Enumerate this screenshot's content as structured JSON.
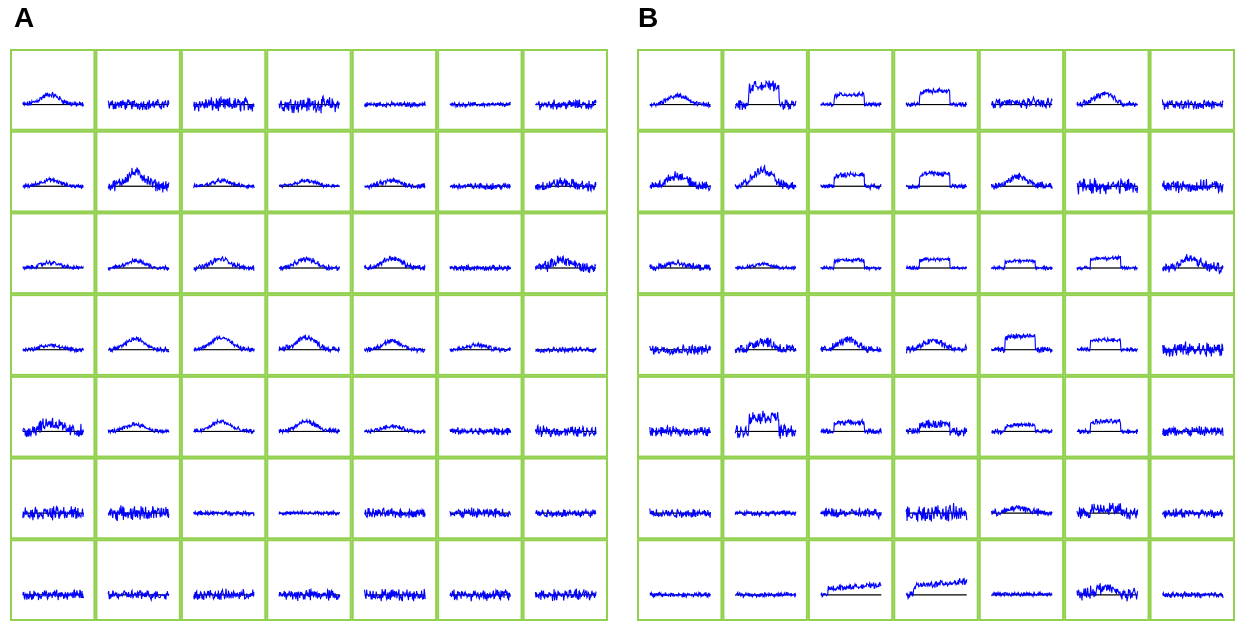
{
  "panels": [
    {
      "label": "A",
      "rows": 7,
      "cols": 7,
      "cells": [
        [
          {
            "shape": "bump",
            "amp": 0.55,
            "noise": 0.6
          },
          {
            "shape": "flat",
            "amp": 0,
            "noise": 1.1
          },
          {
            "shape": "flat",
            "amp": 0,
            "noise": 1.5
          },
          {
            "shape": "flat",
            "amp": 0,
            "noise": 1.6
          },
          {
            "shape": "flat",
            "amp": 0,
            "noise": 0.55
          },
          {
            "shape": "flat",
            "amp": 0,
            "noise": 0.45
          },
          {
            "shape": "flat",
            "amp": 0,
            "noise": 1.0
          }
        ],
        [
          {
            "shape": "bump",
            "amp": 0.35,
            "noise": 0.45
          },
          {
            "shape": "bump",
            "amp": 0.75,
            "noise": 1.2
          },
          {
            "shape": "bump",
            "amp": 0.3,
            "noise": 0.45
          },
          {
            "shape": "bump",
            "amp": 0.3,
            "noise": 0.4
          },
          {
            "shape": "bump",
            "amp": 0.3,
            "noise": 0.6
          },
          {
            "shape": "flat",
            "amp": 0,
            "noise": 0.7
          },
          {
            "shape": "bump",
            "amp": 0.2,
            "noise": 1.1
          }
        ],
        [
          {
            "shape": "bump",
            "amp": 0.3,
            "noise": 0.45
          },
          {
            "shape": "bump",
            "amp": 0.4,
            "noise": 0.45
          },
          {
            "shape": "bump",
            "amp": 0.5,
            "noise": 0.55
          },
          {
            "shape": "bump",
            "amp": 0.5,
            "noise": 0.55
          },
          {
            "shape": "bump",
            "amp": 0.55,
            "noise": 0.6
          },
          {
            "shape": "flat",
            "amp": 0,
            "noise": 0.6
          },
          {
            "shape": "bump",
            "amp": 0.45,
            "noise": 1.2
          }
        ],
        [
          {
            "shape": "bump",
            "amp": 0.25,
            "noise": 0.45
          },
          {
            "shape": "bump",
            "amp": 0.6,
            "noise": 0.5
          },
          {
            "shape": "bump",
            "amp": 0.7,
            "noise": 0.5
          },
          {
            "shape": "bump",
            "amp": 0.7,
            "noise": 0.6
          },
          {
            "shape": "bump",
            "amp": 0.45,
            "noise": 0.6
          },
          {
            "shape": "bump",
            "amp": 0.25,
            "noise": 0.5
          },
          {
            "shape": "flat",
            "amp": 0,
            "noise": 0.55
          }
        ],
        [
          {
            "shape": "bump",
            "amp": 0.5,
            "noise": 1.5
          },
          {
            "shape": "bump",
            "amp": 0.4,
            "noise": 0.45
          },
          {
            "shape": "bump",
            "amp": 0.55,
            "noise": 0.5
          },
          {
            "shape": "bump",
            "amp": 0.55,
            "noise": 0.5
          },
          {
            "shape": "bump",
            "amp": 0.3,
            "noise": 0.45
          },
          {
            "shape": "flat",
            "amp": 0,
            "noise": 0.8
          },
          {
            "shape": "flat",
            "amp": 0,
            "noise": 1.1
          }
        ],
        [
          {
            "shape": "flat",
            "amp": 0,
            "noise": 1.4
          },
          {
            "shape": "flat",
            "amp": 0,
            "noise": 1.5
          },
          {
            "shape": "flat",
            "amp": 0,
            "noise": 0.45
          },
          {
            "shape": "flat",
            "amp": 0,
            "noise": 0.45
          },
          {
            "shape": "flat",
            "amp": 0,
            "noise": 1.0
          },
          {
            "shape": "flat",
            "amp": 0,
            "noise": 1.1
          },
          {
            "shape": "flat",
            "amp": 0,
            "noise": 0.9
          }
        ],
        [
          {
            "shape": "flat",
            "amp": 0,
            "noise": 1.0
          },
          {
            "shape": "flat",
            "amp": 0,
            "noise": 1.0
          },
          {
            "shape": "flat",
            "amp": 0,
            "noise": 1.1
          },
          {
            "shape": "flat",
            "amp": 0,
            "noise": 1.2
          },
          {
            "shape": "flat",
            "amp": 0,
            "noise": 1.2
          },
          {
            "shape": "flat",
            "amp": 0,
            "noise": 1.2
          },
          {
            "shape": "flat",
            "amp": 0,
            "noise": 1.2
          }
        ]
      ]
    },
    {
      "label": "B",
      "rows": 7,
      "cols": 7,
      "cells": [
        [
          {
            "shape": "bump",
            "amp": 0.5,
            "noise": 0.6
          },
          {
            "shape": "step",
            "amp": 1.05,
            "noise": 1.0
          },
          {
            "shape": "step",
            "amp": 0.55,
            "noise": 0.45
          },
          {
            "shape": "step",
            "amp": 0.75,
            "noise": 0.5
          },
          {
            "shape": "flat",
            "amp": 0.3,
            "noise": 1.1
          },
          {
            "shape": "bump",
            "amp": 0.6,
            "noise": 0.7
          },
          {
            "shape": "flat",
            "amp": 0,
            "noise": 1.0
          }
        ],
        [
          {
            "shape": "bump",
            "amp": 0.6,
            "noise": 0.9
          },
          {
            "shape": "bump",
            "amp": 0.9,
            "noise": 0.9
          },
          {
            "shape": "step",
            "amp": 0.65,
            "noise": 0.55
          },
          {
            "shape": "step",
            "amp": 0.7,
            "noise": 0.55
          },
          {
            "shape": "bump",
            "amp": 0.55,
            "noise": 0.8
          },
          {
            "shape": "flat",
            "amp": 0,
            "noise": 1.6
          },
          {
            "shape": "flat",
            "amp": 0,
            "noise": 1.3
          }
        ],
        [
          {
            "shape": "bump",
            "amp": 0.3,
            "noise": 0.7
          },
          {
            "shape": "bump",
            "amp": 0.2,
            "noise": 0.35
          },
          {
            "shape": "step",
            "amp": 0.45,
            "noise": 0.4
          },
          {
            "shape": "step",
            "amp": 0.5,
            "noise": 0.4
          },
          {
            "shape": "step",
            "amp": 0.4,
            "noise": 0.35
          },
          {
            "shape": "step",
            "amp": 0.55,
            "noise": 0.4
          },
          {
            "shape": "bump",
            "amp": 0.5,
            "noise": 1.2
          }
        ],
        [
          {
            "shape": "flat",
            "amp": 0,
            "noise": 1.0
          },
          {
            "shape": "bump",
            "amp": 0.5,
            "noise": 1.2
          },
          {
            "shape": "bump",
            "amp": 0.55,
            "noise": 0.8
          },
          {
            "shape": "bump",
            "amp": 0.5,
            "noise": 0.8
          },
          {
            "shape": "step",
            "amp": 0.75,
            "noise": 0.6
          },
          {
            "shape": "step",
            "amp": 0.55,
            "noise": 0.4
          },
          {
            "shape": "flat",
            "amp": 0,
            "noise": 1.6
          }
        ],
        [
          {
            "shape": "flat",
            "amp": 0,
            "noise": 1.0
          },
          {
            "shape": "step",
            "amp": 0.8,
            "noise": 1.4
          },
          {
            "shape": "step",
            "amp": 0.5,
            "noise": 0.6
          },
          {
            "shape": "step",
            "amp": 0.4,
            "noise": 0.9
          },
          {
            "shape": "step",
            "amp": 0.35,
            "noise": 0.5
          },
          {
            "shape": "step",
            "amp": 0.55,
            "noise": 0.5
          },
          {
            "shape": "flat",
            "amp": 0,
            "noise": 1.1
          }
        ],
        [
          {
            "shape": "flat",
            "amp": 0,
            "noise": 1.0
          },
          {
            "shape": "flat",
            "amp": 0,
            "noise": 0.55
          },
          {
            "shape": "flat",
            "amp": 0,
            "noise": 1.0
          },
          {
            "shape": "flat",
            "amp": 0,
            "noise": 1.8
          },
          {
            "shape": "bump",
            "amp": 0.3,
            "noise": 0.8
          },
          {
            "shape": "step",
            "amp": 0.25,
            "noise": 1.2
          },
          {
            "shape": "flat",
            "amp": 0,
            "noise": 1.0
          }
        ],
        [
          {
            "shape": "flat",
            "amp": 0,
            "noise": 0.5
          },
          {
            "shape": "flat",
            "amp": 0,
            "noise": 0.55
          },
          {
            "shape": "ramp",
            "amp": 0.55,
            "noise": 0.55
          },
          {
            "shape": "ramp",
            "amp": 0.75,
            "noise": 0.7
          },
          {
            "shape": "flat",
            "amp": 0.1,
            "noise": 0.45
          },
          {
            "shape": "bump",
            "amp": 0.4,
            "noise": 1.3
          },
          {
            "shape": "flat",
            "amp": 0,
            "noise": 0.6
          }
        ]
      ]
    }
  ],
  "colors": {
    "grid": "#92d050",
    "trace": "#0000ff",
    "baseline": "#000000"
  }
}
